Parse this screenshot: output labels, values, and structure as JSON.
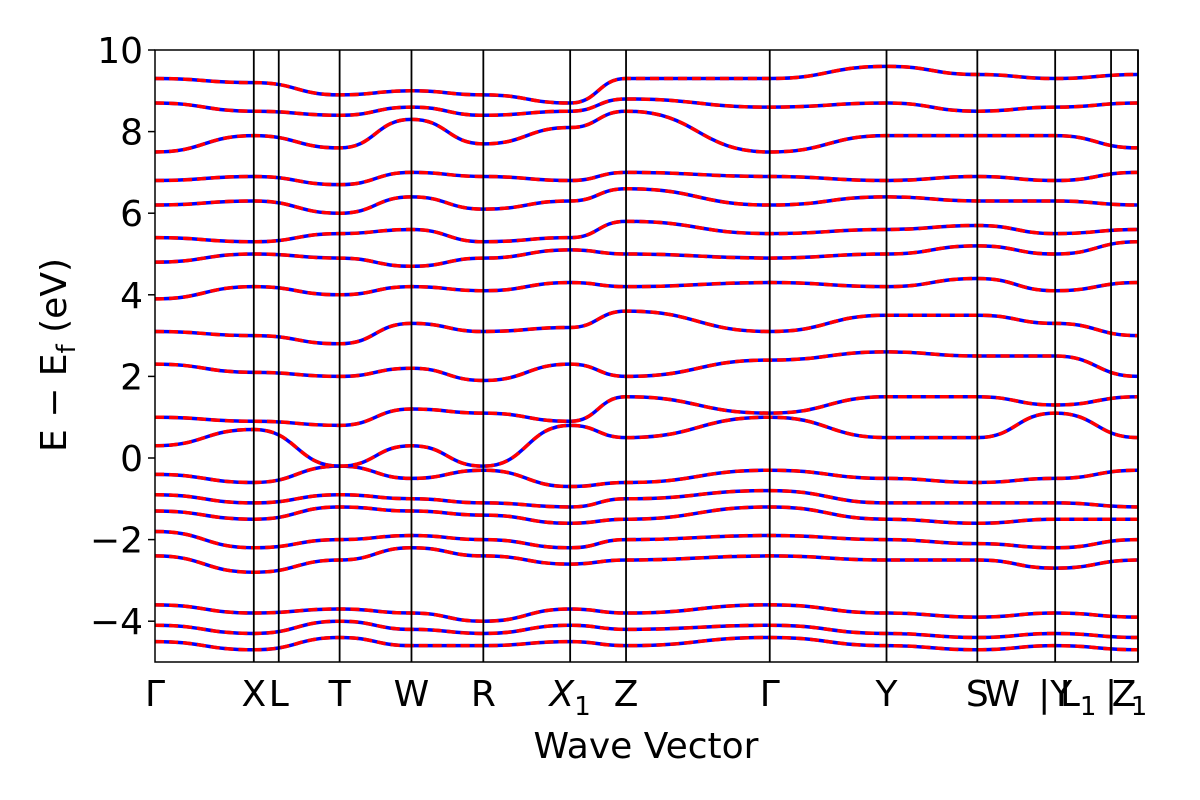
{
  "chart_data": {
    "type": "line",
    "title": "",
    "xlabel": "Wave Vector",
    "ylabel": "E − E",
    "ylabel_sub": "f",
    "ylabel_unit": " (eV)",
    "ylim": [
      -5,
      10
    ],
    "y_ticks": [
      "10",
      "8",
      "6",
      "4",
      "2",
      "0",
      "−2",
      "−4"
    ],
    "y_tick_values": [
      10,
      8,
      6,
      4,
      2,
      0,
      -2,
      -4
    ],
    "k_path_points": [
      {
        "label": "Γ",
        "sub": "",
        "k": 0.0
      },
      {
        "label": "X",
        "sub": "",
        "k": 0.99
      },
      {
        "label": "L",
        "sub": "",
        "k": 1.24
      },
      {
        "label": "T",
        "sub": "",
        "k": 1.85
      },
      {
        "label": "W",
        "sub": "",
        "k": 2.57
      },
      {
        "label": "R",
        "sub": "",
        "k": 3.29
      },
      {
        "label": "X",
        "sub": "1",
        "k": 4.16
      },
      {
        "label": "Z",
        "sub": "",
        "k": 4.72
      },
      {
        "label": "Γ",
        "sub": "",
        "k": 6.16
      },
      {
        "label": "Y",
        "sub": "",
        "k": 7.33
      },
      {
        "label": "S",
        "sub": "",
        "k": 8.24
      },
      {
        "label": "W",
        "sub": "",
        "k": 8.49
      },
      {
        "label": "|Y",
        "sub": "",
        "k": 9.02
      },
      {
        "label": "L",
        "sub": "1",
        "k": 9.25
      },
      {
        "label": "|",
        "sub": "",
        "k": 9.58
      },
      {
        "label": "Z",
        "sub": "",
        "k": 9.71
      },
      {
        "label": "",
        "sub": "1",
        "k": 9.86
      }
    ],
    "k_max": 9.85,
    "vertical_lines_k": [
      0.99,
      1.24,
      1.85,
      2.57,
      3.29,
      4.16,
      4.72,
      6.16,
      7.33,
      8.24,
      9.02,
      9.58,
      9.85
    ],
    "series": [
      {
        "name": "",
        "color": "#0000ff",
        "style": "solid"
      },
      {
        "name": "",
        "color": "#ff0000",
        "style": "dashed"
      }
    ],
    "bands_sample": [
      {
        "k": [
          0,
          0.99,
          1.85,
          2.57,
          3.29,
          4.16,
          4.72,
          6.16,
          7.33,
          8.24,
          9.02,
          9.85
        ],
        "E": [
          -3.6,
          -3.8,
          -3.7,
          -3.8,
          -4.0,
          -3.7,
          -3.8,
          -3.6,
          -3.8,
          -3.9,
          -3.8,
          -3.9
        ]
      },
      {
        "k": [
          0,
          0.99,
          1.85,
          2.57,
          3.29,
          4.16,
          4.72,
          6.16,
          7.33,
          8.24,
          9.02,
          9.85
        ],
        "E": [
          -4.1,
          -4.3,
          -4.0,
          -4.2,
          -4.3,
          -4.1,
          -4.2,
          -4.1,
          -4.3,
          -4.4,
          -4.3,
          -4.4
        ]
      },
      {
        "k": [
          0,
          0.99,
          1.85,
          2.57,
          3.29,
          4.16,
          4.72,
          6.16,
          7.33,
          8.24,
          9.02,
          9.85
        ],
        "E": [
          -4.5,
          -4.7,
          -4.4,
          -4.6,
          -4.6,
          -4.5,
          -4.6,
          -4.4,
          -4.6,
          -4.7,
          -4.6,
          -4.7
        ]
      },
      {
        "k": [
          0,
          0.99,
          1.85,
          2.57,
          3.29,
          4.16,
          4.72,
          6.16,
          7.33,
          8.24,
          9.02,
          9.85
        ],
        "E": [
          -2.4,
          -2.8,
          -2.5,
          -2.2,
          -2.4,
          -2.6,
          -2.5,
          -2.4,
          -2.5,
          -2.5,
          -2.7,
          -2.5
        ]
      },
      {
        "k": [
          0,
          0.99,
          1.85,
          2.57,
          3.29,
          4.16,
          4.72,
          6.16,
          7.33,
          8.24,
          9.02,
          9.85
        ],
        "E": [
          -1.8,
          -2.2,
          -2.0,
          -1.9,
          -2.0,
          -2.2,
          -2.0,
          -1.9,
          -2.0,
          -2.1,
          -2.2,
          -2.0
        ]
      },
      {
        "k": [
          0,
          0.99,
          1.85,
          2.57,
          3.29,
          4.16,
          4.72,
          6.16,
          7.33,
          8.24,
          9.02,
          9.85
        ],
        "E": [
          -1.3,
          -1.5,
          -1.2,
          -1.3,
          -1.4,
          -1.6,
          -1.5,
          -1.2,
          -1.5,
          -1.6,
          -1.5,
          -1.5
        ]
      },
      {
        "k": [
          0,
          0.99,
          1.85,
          2.57,
          3.29,
          4.16,
          4.72,
          6.16,
          7.33,
          8.24,
          9.02,
          9.85
        ],
        "E": [
          -0.9,
          -1.1,
          -0.9,
          -1.0,
          -1.1,
          -1.2,
          -1.0,
          -0.8,
          -1.1,
          -1.1,
          -1.1,
          -1.2
        ]
      },
      {
        "k": [
          0,
          0.99,
          1.85,
          2.57,
          3.29,
          4.16,
          4.72,
          6.16,
          7.33,
          8.24,
          9.02,
          9.85
        ],
        "E": [
          -0.4,
          -0.6,
          -0.2,
          -0.5,
          -0.3,
          -0.7,
          -0.6,
          -0.3,
          -0.5,
          -0.6,
          -0.5,
          -0.3
        ]
      },
      {
        "k": [
          0,
          0.99,
          1.85,
          2.57,
          3.29,
          4.16,
          4.72,
          6.16,
          7.33,
          8.24,
          9.02,
          9.85
        ],
        "E": [
          0.3,
          0.7,
          -0.2,
          0.3,
          -0.2,
          0.8,
          0.5,
          1.0,
          0.5,
          0.5,
          1.1,
          0.5
        ]
      },
      {
        "k": [
          0,
          0.99,
          1.85,
          2.57,
          3.29,
          4.16,
          4.72,
          6.16,
          7.33,
          8.24,
          9.02,
          9.85
        ],
        "E": [
          1.0,
          0.9,
          0.8,
          1.2,
          1.1,
          0.9,
          1.5,
          1.1,
          1.5,
          1.5,
          1.3,
          1.5
        ]
      },
      {
        "k": [
          0,
          0.99,
          1.85,
          2.57,
          3.29,
          4.16,
          4.72,
          6.16,
          7.33,
          8.24,
          9.02,
          9.85
        ],
        "E": [
          2.3,
          2.1,
          2.0,
          2.2,
          1.9,
          2.3,
          2.0,
          2.4,
          2.6,
          2.5,
          2.5,
          2.0
        ]
      },
      {
        "k": [
          0,
          0.99,
          1.85,
          2.57,
          3.29,
          4.16,
          4.72,
          6.16,
          7.33,
          8.24,
          9.02,
          9.85
        ],
        "E": [
          3.1,
          3.0,
          2.8,
          3.3,
          3.1,
          3.2,
          3.6,
          3.1,
          3.5,
          3.5,
          3.3,
          3.0
        ]
      },
      {
        "k": [
          0,
          0.99,
          1.85,
          2.57,
          3.29,
          4.16,
          4.72,
          6.16,
          7.33,
          8.24,
          9.02,
          9.85
        ],
        "E": [
          3.9,
          4.2,
          4.0,
          4.2,
          4.1,
          4.3,
          4.2,
          4.3,
          4.2,
          4.4,
          4.1,
          4.3
        ]
      },
      {
        "k": [
          0,
          0.99,
          1.85,
          2.57,
          3.29,
          4.16,
          4.72,
          6.16,
          7.33,
          8.24,
          9.02,
          9.85
        ],
        "E": [
          4.8,
          5.0,
          4.9,
          4.7,
          4.9,
          5.1,
          5.0,
          4.9,
          5.0,
          5.2,
          5.0,
          5.3
        ]
      },
      {
        "k": [
          0,
          0.99,
          1.85,
          2.57,
          3.29,
          4.16,
          4.72,
          6.16,
          7.33,
          8.24,
          9.02,
          9.85
        ],
        "E": [
          5.4,
          5.3,
          5.5,
          5.6,
          5.3,
          5.4,
          5.8,
          5.5,
          5.6,
          5.7,
          5.5,
          5.6
        ]
      },
      {
        "k": [
          0,
          0.99,
          1.85,
          2.57,
          3.29,
          4.16,
          4.72,
          6.16,
          7.33,
          8.24,
          9.02,
          9.85
        ],
        "E": [
          6.2,
          6.3,
          6.0,
          6.4,
          6.1,
          6.3,
          6.6,
          6.2,
          6.4,
          6.3,
          6.3,
          6.2
        ]
      },
      {
        "k": [
          0,
          0.99,
          1.85,
          2.57,
          3.29,
          4.16,
          4.72,
          6.16,
          7.33,
          8.24,
          9.02,
          9.85
        ],
        "E": [
          6.8,
          6.9,
          6.7,
          7.0,
          6.9,
          6.8,
          7.0,
          6.9,
          6.8,
          6.9,
          6.8,
          7.0
        ]
      },
      {
        "k": [
          0,
          0.99,
          1.85,
          2.57,
          3.29,
          4.16,
          4.72,
          6.16,
          7.33,
          8.24,
          9.02,
          9.85
        ],
        "E": [
          7.5,
          7.9,
          7.6,
          8.3,
          7.7,
          8.1,
          8.5,
          7.5,
          7.9,
          7.9,
          7.9,
          7.6
        ]
      },
      {
        "k": [
          0,
          0.99,
          1.85,
          2.57,
          3.29,
          4.16,
          4.72,
          6.16,
          7.33,
          8.24,
          9.02,
          9.85
        ],
        "E": [
          8.7,
          8.5,
          8.4,
          8.6,
          8.4,
          8.5,
          8.8,
          8.6,
          8.7,
          8.5,
          8.6,
          8.7
        ]
      },
      {
        "k": [
          0,
          0.99,
          1.85,
          2.57,
          3.29,
          4.16,
          4.72,
          6.16,
          7.33,
          8.24,
          9.02,
          9.85
        ],
        "E": [
          9.3,
          9.2,
          8.9,
          9.0,
          8.9,
          8.7,
          9.3,
          9.3,
          9.6,
          9.4,
          9.3,
          9.4
        ]
      }
    ],
    "grid": false,
    "legend": "none"
  }
}
